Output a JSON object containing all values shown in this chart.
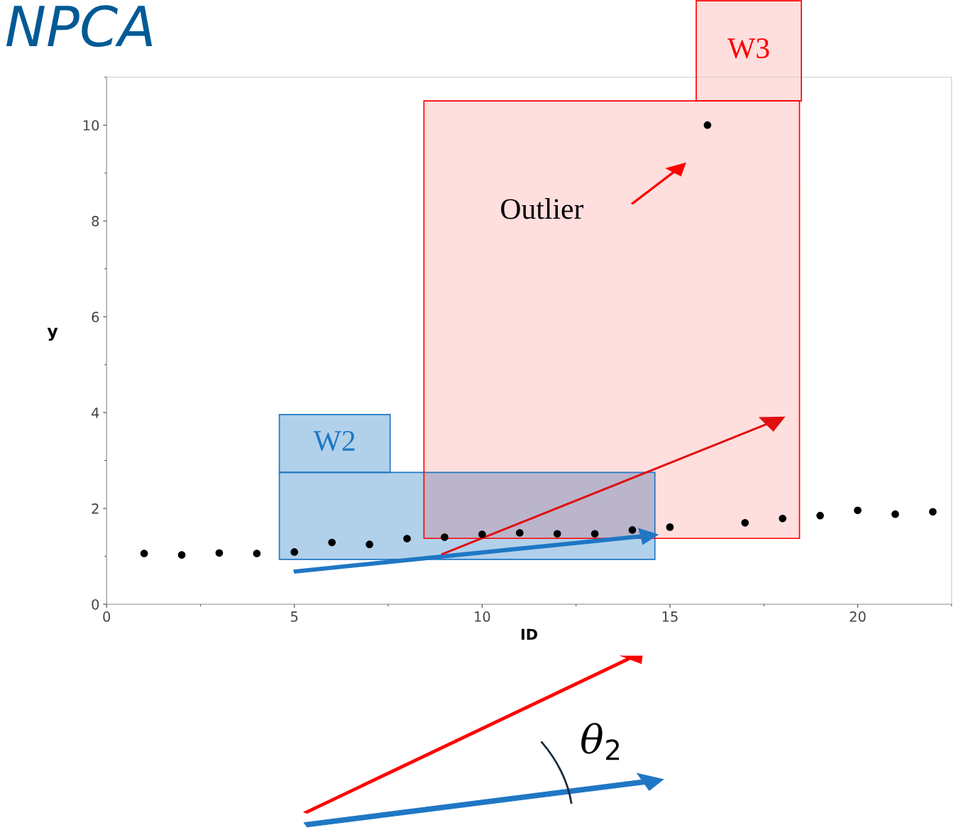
{
  "chart_data": {
    "type": "scatter",
    "title": "NPCA",
    "xlabel": "ID",
    "ylabel": "y",
    "x": [
      1,
      2,
      3,
      4,
      5,
      6,
      7,
      8,
      9,
      10,
      11,
      12,
      13,
      14,
      15,
      16,
      17,
      18,
      19,
      20,
      21,
      22
    ],
    "values": [
      1.06,
      1.03,
      1.07,
      1.06,
      1.09,
      1.29,
      1.25,
      1.37,
      1.4,
      1.46,
      1.49,
      1.47,
      1.47,
      1.55,
      1.61,
      10,
      1.7,
      1.79,
      1.85,
      1.96,
      1.88,
      1.93
    ],
    "color": "#000000",
    "marker": "circle",
    "xlim": [
      0,
      22.5
    ],
    "ylim": [
      0,
      11
    ],
    "xticks": [
      0,
      5,
      10,
      15,
      20
    ],
    "yticks": [
      0,
      2,
      4,
      6,
      8,
      10
    ],
    "grid": false,
    "legend": false,
    "bands": [
      {
        "axis": "x",
        "from": 4.6,
        "to": 14.6,
        "label": "W2",
        "color": "#1f77c4"
      },
      {
        "axis": "x",
        "from": 8.45,
        "to": 18.45,
        "label": "W3",
        "color": "#ff0000"
      }
    ],
    "annotations": [
      "Outlier",
      "θ$_{2}$"
    ]
  }
}
